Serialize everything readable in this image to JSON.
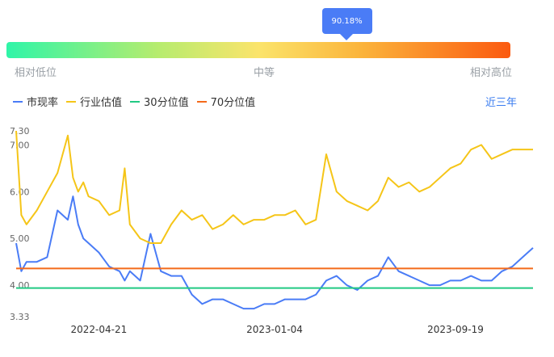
{
  "tooltip": {
    "value": "90.18%"
  },
  "gauge": {
    "low_label": "相对低位",
    "mid_label": "中等",
    "high_label": "相对高位",
    "marker_percent": 0.674
  },
  "legend": {
    "items": [
      {
        "label": "市现率",
        "color": "#4a7cf6"
      },
      {
        "label": "行业估值",
        "color": "#f5c518"
      },
      {
        "label": "30分位值",
        "color": "#22c983"
      },
      {
        "label": "70分位值",
        "color": "#f46a1a"
      }
    ]
  },
  "period": {
    "label": "近三年"
  },
  "chart_data": {
    "type": "line",
    "ylim": [
      3.33,
      7.3
    ],
    "y_ticks": [
      "7.30",
      "7.00",
      "6.00",
      "5.00",
      "4.00",
      "3.33"
    ],
    "y_tick_values": [
      7.3,
      7.0,
      6.0,
      5.0,
      4.0,
      3.33
    ],
    "x_ticks": [
      "2022-04-21",
      "2023-01-04",
      "2023-09-19"
    ],
    "x_tick_positions": [
      0.16,
      0.5,
      0.85
    ],
    "x": [
      0.0,
      0.01,
      0.02,
      0.04,
      0.06,
      0.08,
      0.1,
      0.11,
      0.12,
      0.13,
      0.14,
      0.16,
      0.18,
      0.2,
      0.21,
      0.22,
      0.24,
      0.26,
      0.28,
      0.3,
      0.32,
      0.34,
      0.36,
      0.38,
      0.4,
      0.42,
      0.44,
      0.46,
      0.48,
      0.5,
      0.52,
      0.54,
      0.56,
      0.58,
      0.6,
      0.62,
      0.64,
      0.66,
      0.68,
      0.7,
      0.72,
      0.74,
      0.76,
      0.78,
      0.8,
      0.82,
      0.84,
      0.86,
      0.88,
      0.9,
      0.92,
      0.94,
      0.96,
      0.98,
      1.0
    ],
    "series": [
      {
        "name": "市现率",
        "color": "#4a7cf6",
        "values": [
          4.9,
          4.3,
          4.5,
          4.5,
          4.6,
          5.6,
          5.4,
          5.9,
          5.3,
          5.0,
          4.9,
          4.7,
          4.4,
          4.3,
          4.1,
          4.3,
          4.1,
          5.1,
          4.3,
          4.2,
          4.2,
          3.8,
          3.6,
          3.7,
          3.7,
          3.6,
          3.5,
          3.5,
          3.6,
          3.6,
          3.7,
          3.7,
          3.7,
          3.8,
          4.1,
          4.2,
          4.0,
          3.9,
          4.1,
          4.2,
          4.6,
          4.3,
          4.2,
          4.1,
          4.0,
          4.0,
          4.1,
          4.1,
          4.2,
          4.1,
          4.1,
          4.3,
          4.4,
          4.6,
          4.8
        ]
      },
      {
        "name": "行业估值",
        "color": "#f5c518",
        "values": [
          7.3,
          5.5,
          5.3,
          5.6,
          6.0,
          6.4,
          7.2,
          6.3,
          6.0,
          6.2,
          5.9,
          5.8,
          5.5,
          5.6,
          6.5,
          5.3,
          5.0,
          4.9,
          4.9,
          5.3,
          5.6,
          5.4,
          5.5,
          5.2,
          5.3,
          5.5,
          5.3,
          5.4,
          5.4,
          5.5,
          5.5,
          5.6,
          5.3,
          5.4,
          6.8,
          6.0,
          5.8,
          5.7,
          5.6,
          5.8,
          6.3,
          6.1,
          6.2,
          6.0,
          6.1,
          6.3,
          6.5,
          6.6,
          6.9,
          7.0,
          6.7,
          6.8,
          6.9,
          6.9,
          6.9
        ]
      },
      {
        "name": "30分位值",
        "color": "#22c983",
        "constant": 3.94
      },
      {
        "name": "70分位值",
        "color": "#f46a1a",
        "constant": 4.36
      }
    ]
  }
}
